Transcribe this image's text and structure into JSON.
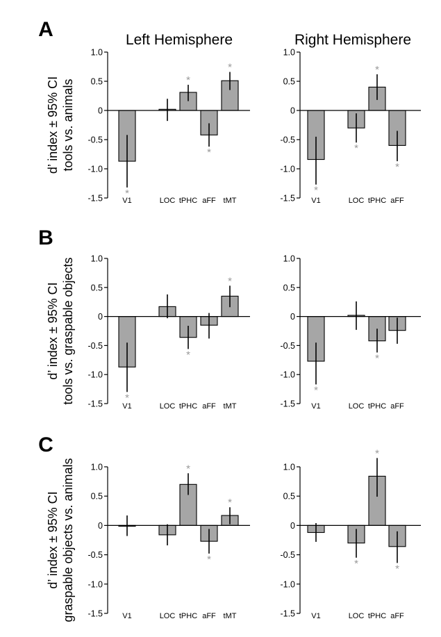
{
  "column_titles": [
    "Left Hemisphere",
    "Right Hemisphere"
  ],
  "rows": [
    {
      "letter": "A",
      "ylabel_line1": "d’ index ± 95% CI",
      "ylabel_line2": "tools vs. animals"
    },
    {
      "letter": "B",
      "ylabel_line1": "d’ index ± 95% CI",
      "ylabel_line2": "tools vs. graspable objects"
    },
    {
      "letter": "C",
      "ylabel_line1": "d’ index ± 95% CI",
      "ylabel_line2": "graspable objects vs. animals"
    }
  ],
  "colors": {
    "bar": "#a6a6a6",
    "significance": "#999999",
    "ink": "#000000"
  },
  "chart_data": [
    {
      "type": "bar",
      "panel": "A",
      "hemisphere": "Left Hemisphere",
      "ylim": [
        -1.5,
        1.0
      ],
      "yticks": [
        "1.0",
        "0.5",
        "0",
        "-0.5",
        "-1.0",
        "-1.5"
      ],
      "yticks_values": [
        1.0,
        0.5,
        0,
        -0.5,
        -1.0,
        -1.5
      ],
      "categories": [
        "V1",
        "LOC",
        "tPHC",
        "aFF",
        "tMT"
      ],
      "values": [
        -0.87,
        0.02,
        0.31,
        -0.42,
        0.51
      ],
      "ci_low": [
        -1.32,
        -0.18,
        0.16,
        -0.62,
        0.35
      ],
      "ci_high": [
        -0.42,
        0.2,
        0.44,
        -0.22,
        0.66
      ],
      "significant": [
        true,
        false,
        true,
        true,
        true
      ]
    },
    {
      "type": "bar",
      "panel": "A",
      "hemisphere": "Right Hemisphere",
      "ylim": [
        -1.5,
        1.0
      ],
      "yticks": [
        "1.0",
        "0.5",
        "0",
        "-0.5",
        "-1.0",
        "-1.5"
      ],
      "yticks_values": [
        1.0,
        0.5,
        0,
        -0.5,
        -1.0,
        -1.5
      ],
      "categories": [
        "V1",
        "LOC",
        "tPHC",
        "aFF"
      ],
      "values": [
        -0.84,
        -0.3,
        0.4,
        -0.6
      ],
      "ci_low": [
        -1.27,
        -0.55,
        0.18,
        -0.87
      ],
      "ci_high": [
        -0.45,
        -0.05,
        0.62,
        -0.35
      ],
      "significant": [
        true,
        true,
        true,
        true
      ]
    },
    {
      "type": "bar",
      "panel": "B",
      "hemisphere": "Left Hemisphere",
      "ylim": [
        -1.5,
        1.0
      ],
      "yticks": [
        "1.0",
        "0.5",
        "0",
        "-0.5",
        "-1.0",
        "-1.5"
      ],
      "yticks_values": [
        1.0,
        0.5,
        0,
        -0.5,
        -1.0,
        -1.5
      ],
      "categories": [
        "V1",
        "LOC",
        "tPHC",
        "aFF",
        "tMT"
      ],
      "values": [
        -0.87,
        0.17,
        -0.36,
        -0.15,
        0.35
      ],
      "ci_low": [
        -1.3,
        -0.03,
        -0.56,
        -0.38,
        0.16
      ],
      "ci_high": [
        -0.45,
        0.38,
        -0.16,
        0.06,
        0.53
      ],
      "significant": [
        true,
        false,
        true,
        false,
        true
      ]
    },
    {
      "type": "bar",
      "panel": "B",
      "hemisphere": "Right Hemisphere",
      "ylim": [
        -1.5,
        1.0
      ],
      "yticks": [
        "1.0",
        "0.5",
        "0",
        "-0.5",
        "-1.0",
        "-1.5"
      ],
      "yticks_values": [
        1.0,
        0.5,
        0,
        -0.5,
        -1.0,
        -1.5
      ],
      "categories": [
        "V1",
        "LOC",
        "tPHC",
        "aFF"
      ],
      "values": [
        -0.77,
        0.02,
        -0.42,
        -0.24
      ],
      "ci_low": [
        -1.17,
        -0.23,
        -0.62,
        -0.47
      ],
      "ci_high": [
        -0.45,
        0.26,
        -0.21,
        -0.02
      ],
      "significant": [
        true,
        false,
        true,
        false
      ]
    },
    {
      "type": "bar",
      "panel": "C",
      "hemisphere": "Left Hemisphere",
      "ylim": [
        -1.5,
        1.0
      ],
      "yticks": [
        "1.0",
        "0.5",
        "0",
        "-0.5",
        "-1.0",
        "-1.5"
      ],
      "yticks_values": [
        1.0,
        0.5,
        0,
        -0.5,
        -1.0,
        -1.5
      ],
      "categories": [
        "V1",
        "LOC",
        "tPHC",
        "aFF",
        "tMT"
      ],
      "values": [
        0.0,
        -0.16,
        0.7,
        -0.27,
        0.17
      ],
      "ci_low": [
        -0.18,
        -0.34,
        0.52,
        -0.48,
        0.02
      ],
      "ci_high": [
        0.17,
        0.02,
        0.89,
        -0.06,
        0.31
      ],
      "significant": [
        false,
        false,
        true,
        true,
        true
      ]
    },
    {
      "type": "bar",
      "panel": "C",
      "hemisphere": "Right Hemisphere",
      "ylim": [
        -1.5,
        1.0
      ],
      "yticks": [
        "1.0",
        "0.5",
        "0",
        "-0.5",
        "-1.0",
        "-1.5"
      ],
      "yticks_values": [
        1.0,
        0.5,
        0,
        -0.5,
        -1.0,
        -1.5
      ],
      "categories": [
        "V1",
        "LOC",
        "tPHC",
        "aFF"
      ],
      "values": [
        -0.12,
        -0.3,
        0.84,
        -0.36
      ],
      "ci_low": [
        -0.28,
        -0.55,
        0.49,
        -0.64
      ],
      "ci_high": [
        0.04,
        -0.06,
        1.15,
        -0.1
      ],
      "significant": [
        false,
        true,
        true,
        true
      ]
    }
  ]
}
